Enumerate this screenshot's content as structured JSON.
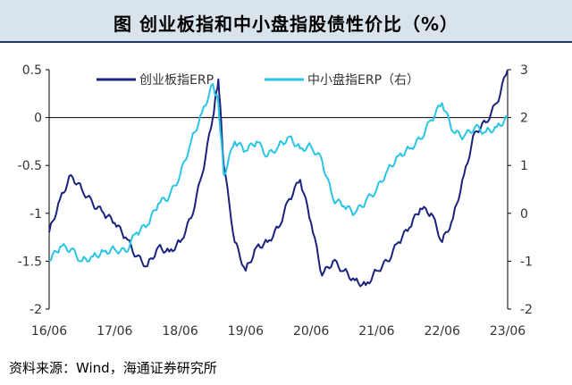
{
  "title": "图   创业板指和中小盘指股债性价比（%）",
  "source": "资料来源：Wind，海通证券研究所",
  "chart_data": {
    "type": "line",
    "x_ticks": [
      "16/06",
      "17/06",
      "18/06",
      "19/06",
      "20/06",
      "21/06",
      "22/06",
      "23/06"
    ],
    "y_left": {
      "ticks": [
        "0.5",
        "0",
        "-0.5",
        "-1",
        "-1.5",
        "-2"
      ],
      "ylim": [
        -2,
        0.5
      ]
    },
    "y_right": {
      "ticks": [
        "3",
        "2",
        "1",
        "0",
        "-1",
        "-2"
      ],
      "ylim": [
        -2,
        3
      ]
    },
    "legend_position": "top",
    "series": [
      {
        "name": "创业板指ERP",
        "axis": "left",
        "color": "#1a237e",
        "x": [
          "16/06",
          "16/08",
          "16/10",
          "16/12",
          "17/02",
          "17/04",
          "17/06",
          "17/08",
          "17/10",
          "17/12",
          "18/02",
          "18/04",
          "18/06",
          "18/08",
          "18/10",
          "18/12",
          "19/01",
          "19/02",
          "19/04",
          "19/06",
          "19/08",
          "19/10",
          "19/12",
          "20/02",
          "20/04",
          "20/06",
          "20/08",
          "20/10",
          "20/12",
          "21/02",
          "21/04",
          "21/06",
          "21/08",
          "21/10",
          "21/12",
          "22/02",
          "22/04",
          "22/06",
          "22/08",
          "22/10",
          "22/12",
          "23/02",
          "23/04",
          "23/06"
        ],
        "values": [
          -1.2,
          -0.85,
          -0.6,
          -0.75,
          -0.9,
          -1.0,
          -1.1,
          -1.25,
          -1.45,
          -1.55,
          -1.35,
          -1.4,
          -1.3,
          -1.05,
          -0.6,
          0.0,
          0.4,
          -0.5,
          -1.3,
          -1.6,
          -1.35,
          -1.3,
          -1.15,
          -0.85,
          -0.65,
          -1.1,
          -1.65,
          -1.5,
          -1.6,
          -1.7,
          -1.75,
          -1.6,
          -1.5,
          -1.3,
          -1.15,
          -0.95,
          -1.0,
          -1.3,
          -1.05,
          -0.6,
          -0.15,
          -0.05,
          0.15,
          0.5
        ]
      },
      {
        "name": "中小盘指ERP（右）",
        "axis": "right",
        "color": "#29c5e6",
        "x": [
          "16/06",
          "16/08",
          "16/10",
          "16/12",
          "17/02",
          "17/04",
          "17/06",
          "17/08",
          "17/10",
          "17/12",
          "18/02",
          "18/04",
          "18/06",
          "18/08",
          "18/10",
          "18/12",
          "19/01",
          "19/02",
          "19/04",
          "19/06",
          "19/08",
          "19/10",
          "19/12",
          "20/02",
          "20/04",
          "20/06",
          "20/08",
          "20/10",
          "20/12",
          "21/02",
          "21/04",
          "21/06",
          "21/08",
          "21/10",
          "21/12",
          "22/02",
          "22/04",
          "22/06",
          "22/08",
          "22/10",
          "22/12",
          "23/02",
          "23/04",
          "23/06"
        ],
        "values": [
          -1.0,
          -0.7,
          -0.75,
          -1.0,
          -0.9,
          -0.8,
          -0.75,
          -0.8,
          -0.4,
          -0.25,
          0.2,
          0.35,
          0.8,
          1.5,
          2.1,
          2.7,
          2.3,
          0.8,
          1.5,
          1.3,
          1.5,
          1.2,
          1.4,
          1.6,
          1.35,
          1.4,
          1.1,
          0.3,
          0.15,
          0.0,
          0.25,
          0.5,
          0.9,
          1.2,
          1.35,
          1.55,
          1.95,
          2.3,
          1.7,
          1.6,
          1.8,
          1.7,
          1.8,
          2.0
        ]
      }
    ]
  }
}
